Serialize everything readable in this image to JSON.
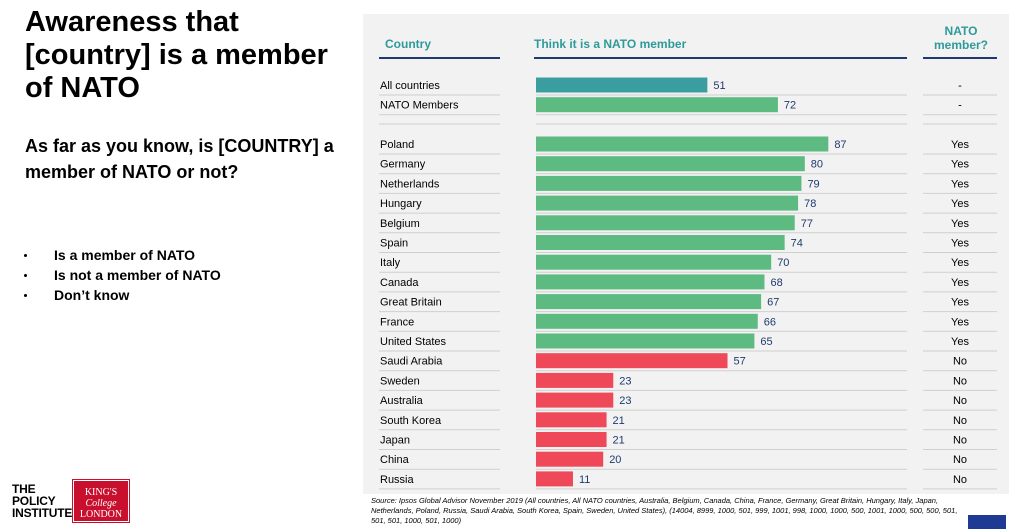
{
  "title": "Awareness that [country] is a member of NATO",
  "question": "As far as you know, is [COUNTRY] a member of NATO or not?",
  "options": [
    "Is a member of NATO",
    "Is not a member of NATO",
    "Don’t know"
  ],
  "logos": {
    "policy_lines": [
      "THE",
      "POLICY",
      "INSTITUTE"
    ],
    "kings_lines": [
      "KING'S",
      "College",
      "LONDON"
    ]
  },
  "colors": {
    "header_teal": "#2e9a9a",
    "aggregate_bar": "#3a9ea0",
    "member_bar": "#5dbb82",
    "nonmember_bar": "#ef4858",
    "value_label": "#1f3a6e"
  },
  "chart_data": {
    "type": "bar",
    "orientation": "horizontal",
    "column_headers": {
      "country": "Country",
      "think": "Think it is a NATO member",
      "nato": "NATO member?"
    },
    "xlim": [
      0,
      100
    ],
    "rows": [
      {
        "country": "All countries",
        "value": 51,
        "nato": "-",
        "group": "aggregate"
      },
      {
        "country": "NATO Members",
        "value": 72,
        "nato": "-",
        "group": "member"
      },
      {
        "country": "Poland",
        "value": 87,
        "nato": "Yes",
        "group": "member"
      },
      {
        "country": "Germany",
        "value": 80,
        "nato": "Yes",
        "group": "member"
      },
      {
        "country": "Netherlands",
        "value": 79,
        "nato": "Yes",
        "group": "member"
      },
      {
        "country": "Hungary",
        "value": 78,
        "nato": "Yes",
        "group": "member"
      },
      {
        "country": "Belgium",
        "value": 77,
        "nato": "Yes",
        "group": "member"
      },
      {
        "country": "Spain",
        "value": 74,
        "nato": "Yes",
        "group": "member"
      },
      {
        "country": "Italy",
        "value": 70,
        "nato": "Yes",
        "group": "member"
      },
      {
        "country": "Canada",
        "value": 68,
        "nato": "Yes",
        "group": "member"
      },
      {
        "country": "Great Britain",
        "value": 67,
        "nato": "Yes",
        "group": "member"
      },
      {
        "country": "France",
        "value": 66,
        "nato": "Yes",
        "group": "member"
      },
      {
        "country": "United States",
        "value": 65,
        "nato": "Yes",
        "group": "member"
      },
      {
        "country": "Saudi Arabia",
        "value": 57,
        "nato": "No",
        "group": "nonmember"
      },
      {
        "country": "Sweden",
        "value": 23,
        "nato": "No",
        "group": "nonmember"
      },
      {
        "country": "Australia",
        "value": 23,
        "nato": "No",
        "group": "nonmember"
      },
      {
        "country": "South Korea",
        "value": 21,
        "nato": "No",
        "group": "nonmember"
      },
      {
        "country": "Japan",
        "value": 21,
        "nato": "No",
        "group": "nonmember"
      },
      {
        "country": "China",
        "value": 20,
        "nato": "No",
        "group": "nonmember"
      },
      {
        "country": "Russia",
        "value": 11,
        "nato": "No",
        "group": "nonmember"
      }
    ]
  },
  "source": "Source: Ipsos Global Advisor November 2019 (All countries, All NATO countries, Australia, Belgium, Canada, China, France, Germany, Great Britain, Hungary, Italy, Japan, Netherlands, Poland, Russia, Saudi Arabia, South Korea, Spain, Sweden, United States), (14004, 8999, 1000, 501, 999, 1001, 998, 1000, 1000, 500, 1001, 1000, 500, 500, 501, 501, 501, 1000, 501, 1000)"
}
